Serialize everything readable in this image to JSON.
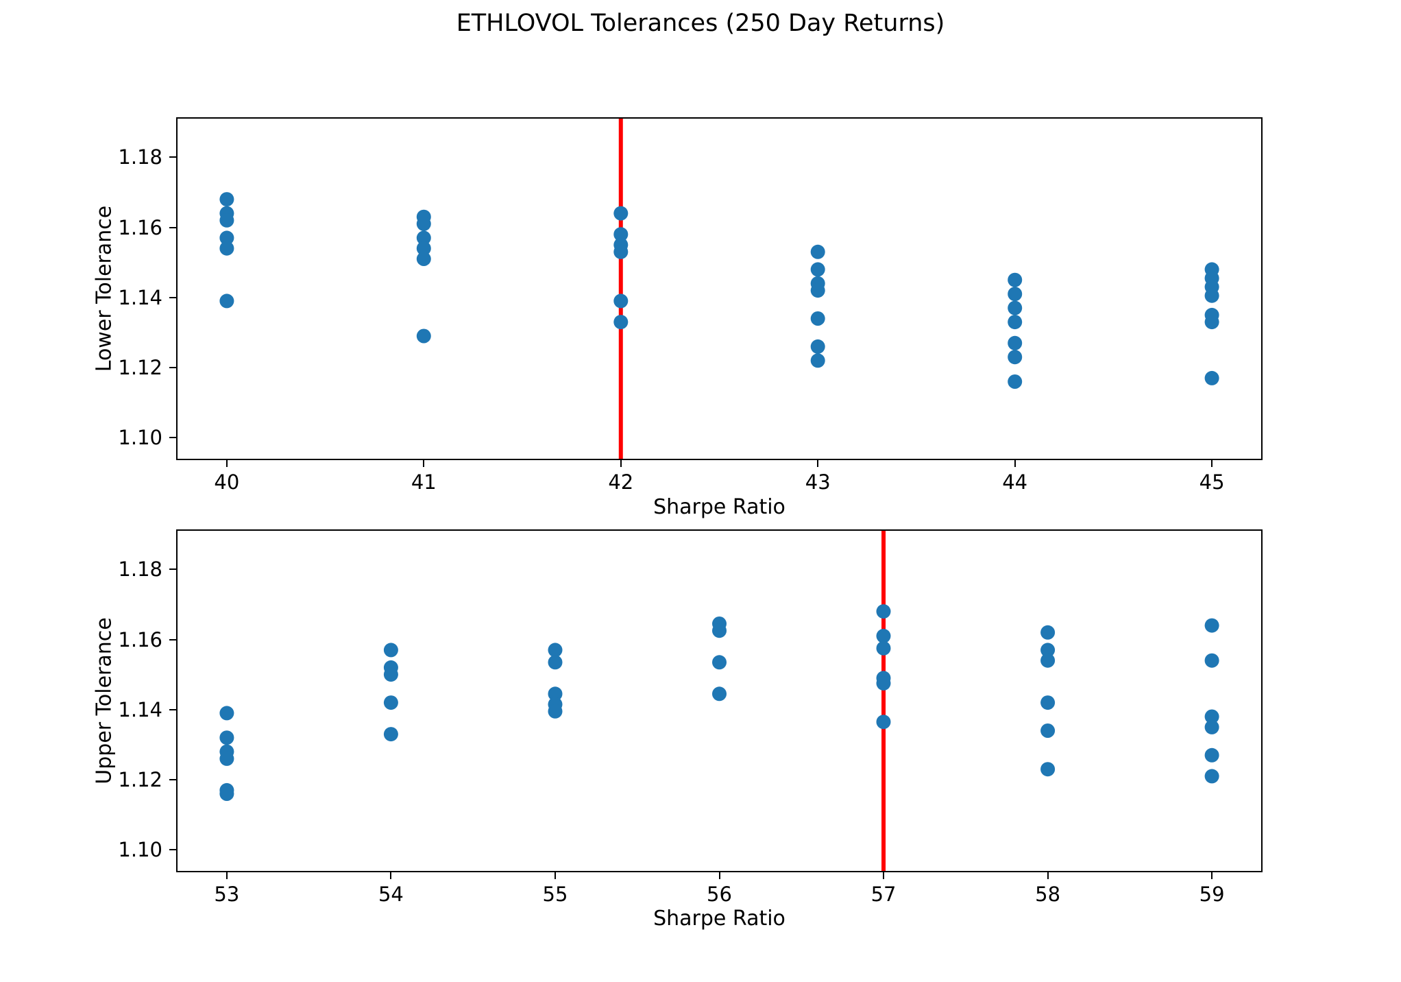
{
  "figure": {
    "title": "ETHLOVOL Tolerances (250 Day Returns)",
    "background": "#ffffff",
    "scatter_color": "#1f77b4",
    "vline_color": "#ff0000",
    "spine_color": "#000000"
  },
  "chart_data": [
    {
      "type": "scatter",
      "panel": "top",
      "xlabel": "Sharpe Ratio",
      "ylabel": "Lower Tolerance",
      "xlim": [
        39.75,
        45.25
      ],
      "ylim": [
        1.094,
        1.191
      ],
      "xticks": [
        40,
        41,
        42,
        43,
        44,
        45
      ],
      "yticks": [
        1.1,
        1.12,
        1.14,
        1.16,
        1.18
      ],
      "grid": false,
      "legend": null,
      "vline_x": 42,
      "points": [
        [
          40,
          1.168
        ],
        [
          40,
          1.164
        ],
        [
          40,
          1.162
        ],
        [
          40,
          1.157
        ],
        [
          40,
          1.154
        ],
        [
          40,
          1.139
        ],
        [
          41,
          1.163
        ],
        [
          41,
          1.161
        ],
        [
          41,
          1.157
        ],
        [
          41,
          1.154
        ],
        [
          41,
          1.151
        ],
        [
          41,
          1.129
        ],
        [
          42,
          1.164
        ],
        [
          42,
          1.158
        ],
        [
          42,
          1.155
        ],
        [
          42,
          1.153
        ],
        [
          42,
          1.139
        ],
        [
          42,
          1.133
        ],
        [
          43,
          1.153
        ],
        [
          43,
          1.148
        ],
        [
          43,
          1.144
        ],
        [
          43,
          1.142
        ],
        [
          43,
          1.134
        ],
        [
          43,
          1.126
        ],
        [
          43,
          1.122
        ],
        [
          44,
          1.145
        ],
        [
          44,
          1.141
        ],
        [
          44,
          1.137
        ],
        [
          44,
          1.133
        ],
        [
          44,
          1.127
        ],
        [
          44,
          1.123
        ],
        [
          44,
          1.116
        ],
        [
          45,
          1.148
        ],
        [
          45,
          1.1455
        ],
        [
          45,
          1.143
        ],
        [
          45,
          1.1405
        ],
        [
          45,
          1.135
        ],
        [
          45,
          1.133
        ],
        [
          45,
          1.117
        ]
      ]
    },
    {
      "type": "scatter",
      "panel": "bottom",
      "xlabel": "Sharpe Ratio",
      "ylabel": "Upper Tolerance",
      "xlim": [
        52.7,
        59.3
      ],
      "ylim": [
        1.094,
        1.191
      ],
      "xticks": [
        53,
        54,
        55,
        56,
        57,
        58,
        59
      ],
      "yticks": [
        1.1,
        1.12,
        1.14,
        1.16,
        1.18
      ],
      "grid": false,
      "legend": null,
      "vline_x": 57,
      "points": [
        [
          53,
          1.139
        ],
        [
          53,
          1.132
        ],
        [
          53,
          1.128
        ],
        [
          53,
          1.126
        ],
        [
          53,
          1.117
        ],
        [
          53,
          1.116
        ],
        [
          54,
          1.157
        ],
        [
          54,
          1.152
        ],
        [
          54,
          1.15
        ],
        [
          54,
          1.142
        ],
        [
          54,
          1.133
        ],
        [
          55,
          1.157
        ],
        [
          55,
          1.1535
        ],
        [
          55,
          1.1445
        ],
        [
          55,
          1.1415
        ],
        [
          55,
          1.1395
        ],
        [
          56,
          1.1645
        ],
        [
          56,
          1.1625
        ],
        [
          56,
          1.1535
        ],
        [
          56,
          1.1445
        ],
        [
          57,
          1.168
        ],
        [
          57,
          1.161
        ],
        [
          57,
          1.1575
        ],
        [
          57,
          1.149
        ],
        [
          57,
          1.1475
        ],
        [
          57,
          1.1365
        ],
        [
          58,
          1.162
        ],
        [
          58,
          1.157
        ],
        [
          58,
          1.154
        ],
        [
          58,
          1.142
        ],
        [
          58,
          1.134
        ],
        [
          58,
          1.123
        ],
        [
          59,
          1.164
        ],
        [
          59,
          1.154
        ],
        [
          59,
          1.138
        ],
        [
          59,
          1.135
        ],
        [
          59,
          1.127
        ],
        [
          59,
          1.121
        ]
      ]
    }
  ]
}
